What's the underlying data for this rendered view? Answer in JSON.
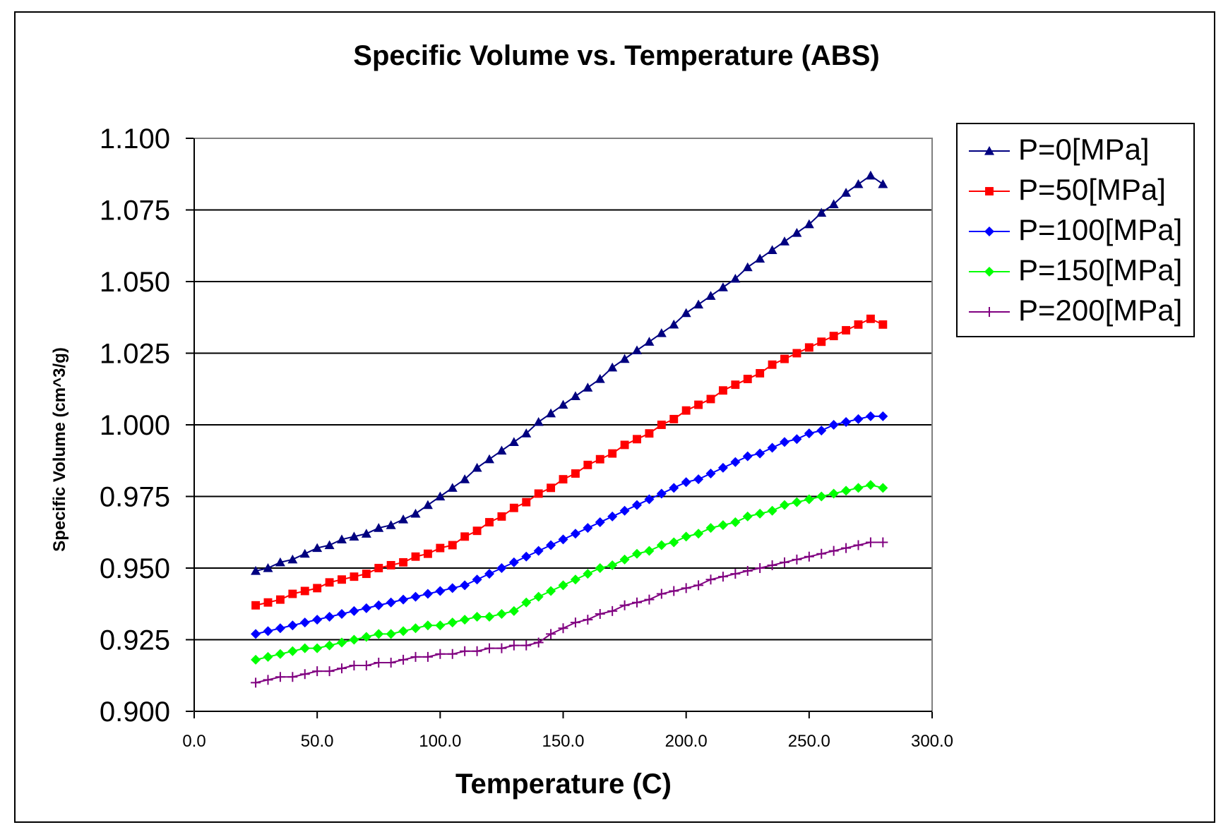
{
  "chart_data": {
    "type": "line",
    "title": "Specific Volume vs. Temperature (ABS)",
    "xlabel": "Temperature (C)",
    "ylabel": "Specific Volume (cm^3/g)",
    "xlim": [
      0,
      300
    ],
    "ylim": [
      0.9,
      1.1
    ],
    "x_ticks": [
      "0.0",
      "50.0",
      "100.0",
      "150.0",
      "200.0",
      "250.0",
      "300.0"
    ],
    "y_ticks": [
      "0.900",
      "0.925",
      "0.950",
      "0.975",
      "1.000",
      "1.025",
      "1.050",
      "1.075",
      "1.100"
    ],
    "grid": "horizontal",
    "legend_position": "right",
    "x": [
      25,
      30,
      35,
      40,
      45,
      50,
      55,
      60,
      65,
      70,
      75,
      80,
      85,
      90,
      95,
      100,
      105,
      110,
      115,
      120,
      125,
      130,
      135,
      140,
      145,
      150,
      155,
      160,
      165,
      170,
      175,
      180,
      185,
      190,
      195,
      200,
      205,
      210,
      215,
      220,
      225,
      230,
      235,
      240,
      245,
      250,
      255,
      260,
      265,
      270,
      275,
      280
    ],
    "series": [
      {
        "name": "P=0[MPa]",
        "color": "#000080",
        "marker": "triangle",
        "values": [
          0.949,
          0.95,
          0.952,
          0.953,
          0.955,
          0.957,
          0.958,
          0.96,
          0.961,
          0.962,
          0.964,
          0.965,
          0.967,
          0.969,
          0.972,
          0.975,
          0.978,
          0.981,
          0.985,
          0.988,
          0.991,
          0.994,
          0.997,
          1.001,
          1.004,
          1.007,
          1.01,
          1.013,
          1.016,
          1.02,
          1.023,
          1.026,
          1.029,
          1.032,
          1.035,
          1.039,
          1.042,
          1.045,
          1.048,
          1.051,
          1.055,
          1.058,
          1.061,
          1.064,
          1.067,
          1.07,
          1.074,
          1.077,
          1.081,
          1.084,
          1.087,
          1.084
        ]
      },
      {
        "name": "P=50[MPa]",
        "color": "#ff0000",
        "marker": "square",
        "values": [
          0.937,
          0.938,
          0.939,
          0.941,
          0.942,
          0.943,
          0.945,
          0.946,
          0.947,
          0.948,
          0.95,
          0.951,
          0.952,
          0.954,
          0.955,
          0.957,
          0.958,
          0.961,
          0.963,
          0.966,
          0.968,
          0.971,
          0.973,
          0.976,
          0.978,
          0.981,
          0.983,
          0.986,
          0.988,
          0.99,
          0.993,
          0.995,
          0.997,
          1.0,
          1.002,
          1.005,
          1.007,
          1.009,
          1.012,
          1.014,
          1.016,
          1.018,
          1.021,
          1.023,
          1.025,
          1.027,
          1.029,
          1.031,
          1.033,
          1.035,
          1.037,
          1.035
        ]
      },
      {
        "name": "P=100[MPa]",
        "color": "#0000ff",
        "marker": "diamond",
        "values": [
          0.927,
          0.928,
          0.929,
          0.93,
          0.931,
          0.932,
          0.933,
          0.934,
          0.935,
          0.936,
          0.937,
          0.938,
          0.939,
          0.94,
          0.941,
          0.942,
          0.943,
          0.944,
          0.946,
          0.948,
          0.95,
          0.952,
          0.954,
          0.956,
          0.958,
          0.96,
          0.962,
          0.964,
          0.966,
          0.968,
          0.97,
          0.972,
          0.974,
          0.976,
          0.978,
          0.98,
          0.981,
          0.983,
          0.985,
          0.987,
          0.989,
          0.99,
          0.992,
          0.994,
          0.995,
          0.997,
          0.998,
          1.0,
          1.001,
          1.002,
          1.003,
          1.003
        ]
      },
      {
        "name": "P=150[MPa]",
        "color": "#00ff00",
        "marker": "diamond",
        "values": [
          0.918,
          0.919,
          0.92,
          0.921,
          0.922,
          0.922,
          0.923,
          0.924,
          0.925,
          0.926,
          0.927,
          0.927,
          0.928,
          0.929,
          0.93,
          0.93,
          0.931,
          0.932,
          0.933,
          0.933,
          0.934,
          0.935,
          0.938,
          0.94,
          0.942,
          0.944,
          0.946,
          0.948,
          0.95,
          0.951,
          0.953,
          0.955,
          0.956,
          0.958,
          0.959,
          0.961,
          0.962,
          0.964,
          0.965,
          0.966,
          0.968,
          0.969,
          0.97,
          0.972,
          0.973,
          0.974,
          0.975,
          0.976,
          0.977,
          0.978,
          0.979,
          0.978
        ]
      },
      {
        "name": "P=200[MPa]",
        "color": "#800080",
        "marker": "plus",
        "values": [
          0.91,
          0.911,
          0.912,
          0.912,
          0.913,
          0.914,
          0.914,
          0.915,
          0.916,
          0.916,
          0.917,
          0.917,
          0.918,
          0.919,
          0.919,
          0.92,
          0.92,
          0.921,
          0.921,
          0.922,
          0.922,
          0.923,
          0.923,
          0.924,
          0.927,
          0.929,
          0.931,
          0.932,
          0.934,
          0.935,
          0.937,
          0.938,
          0.939,
          0.941,
          0.942,
          0.943,
          0.944,
          0.946,
          0.947,
          0.948,
          0.949,
          0.95,
          0.951,
          0.952,
          0.953,
          0.954,
          0.955,
          0.956,
          0.957,
          0.958,
          0.959,
          0.959
        ]
      }
    ]
  }
}
